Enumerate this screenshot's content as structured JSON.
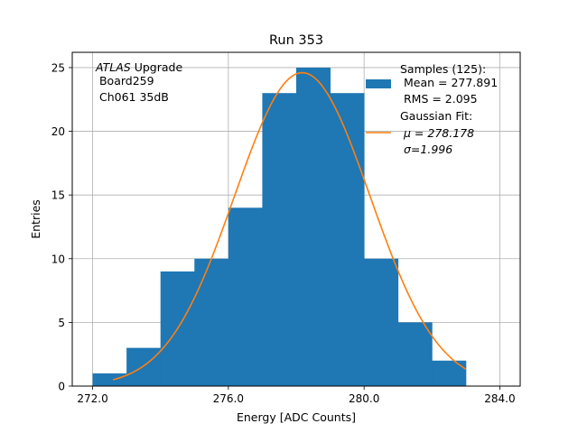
{
  "chart_data": {
    "type": "bar",
    "title": "Run 353",
    "xlabel": "Energy [ADC Counts]",
    "ylabel": "Entries",
    "xlim": [
      271.4,
      284.6
    ],
    "ylim": [
      0,
      26.2
    ],
    "xticks": [
      "272.0",
      "276.0",
      "280.0",
      "284.0"
    ],
    "yticks": [
      "0",
      "5",
      "10",
      "15",
      "20",
      "25"
    ],
    "grid": true,
    "bin_edges": [
      272,
      273,
      274,
      275,
      276,
      277,
      278,
      279,
      280,
      281,
      282,
      283
    ],
    "series": [
      {
        "kind": "histogram",
        "color": "#1f77b4",
        "values": [
          1,
          3,
          9,
          10,
          14,
          23,
          25,
          23,
          10,
          5,
          2
        ]
      },
      {
        "kind": "gaussian_fit",
        "color": "#ff7f0e",
        "amplitude": 24.6,
        "mu": 278.178,
        "sigma": 1.996,
        "x_range": [
          272.6,
          283.0
        ]
      }
    ],
    "annotation": {
      "experiment": "ATLAS",
      "line1_rest": " Upgrade",
      "line2": " Board259",
      "line3": " Ch061 35dB"
    },
    "legend": {
      "placement": "top-right",
      "entries": [
        {
          "label_lines": [
            "Samples (125):",
            " Mean = 277.891",
            " RMS = 2.095"
          ]
        },
        {
          "label_lines": [
            "Gaussian Fit:",
            "μ = 278.178",
            "σ=1.996"
          ]
        }
      ]
    }
  }
}
